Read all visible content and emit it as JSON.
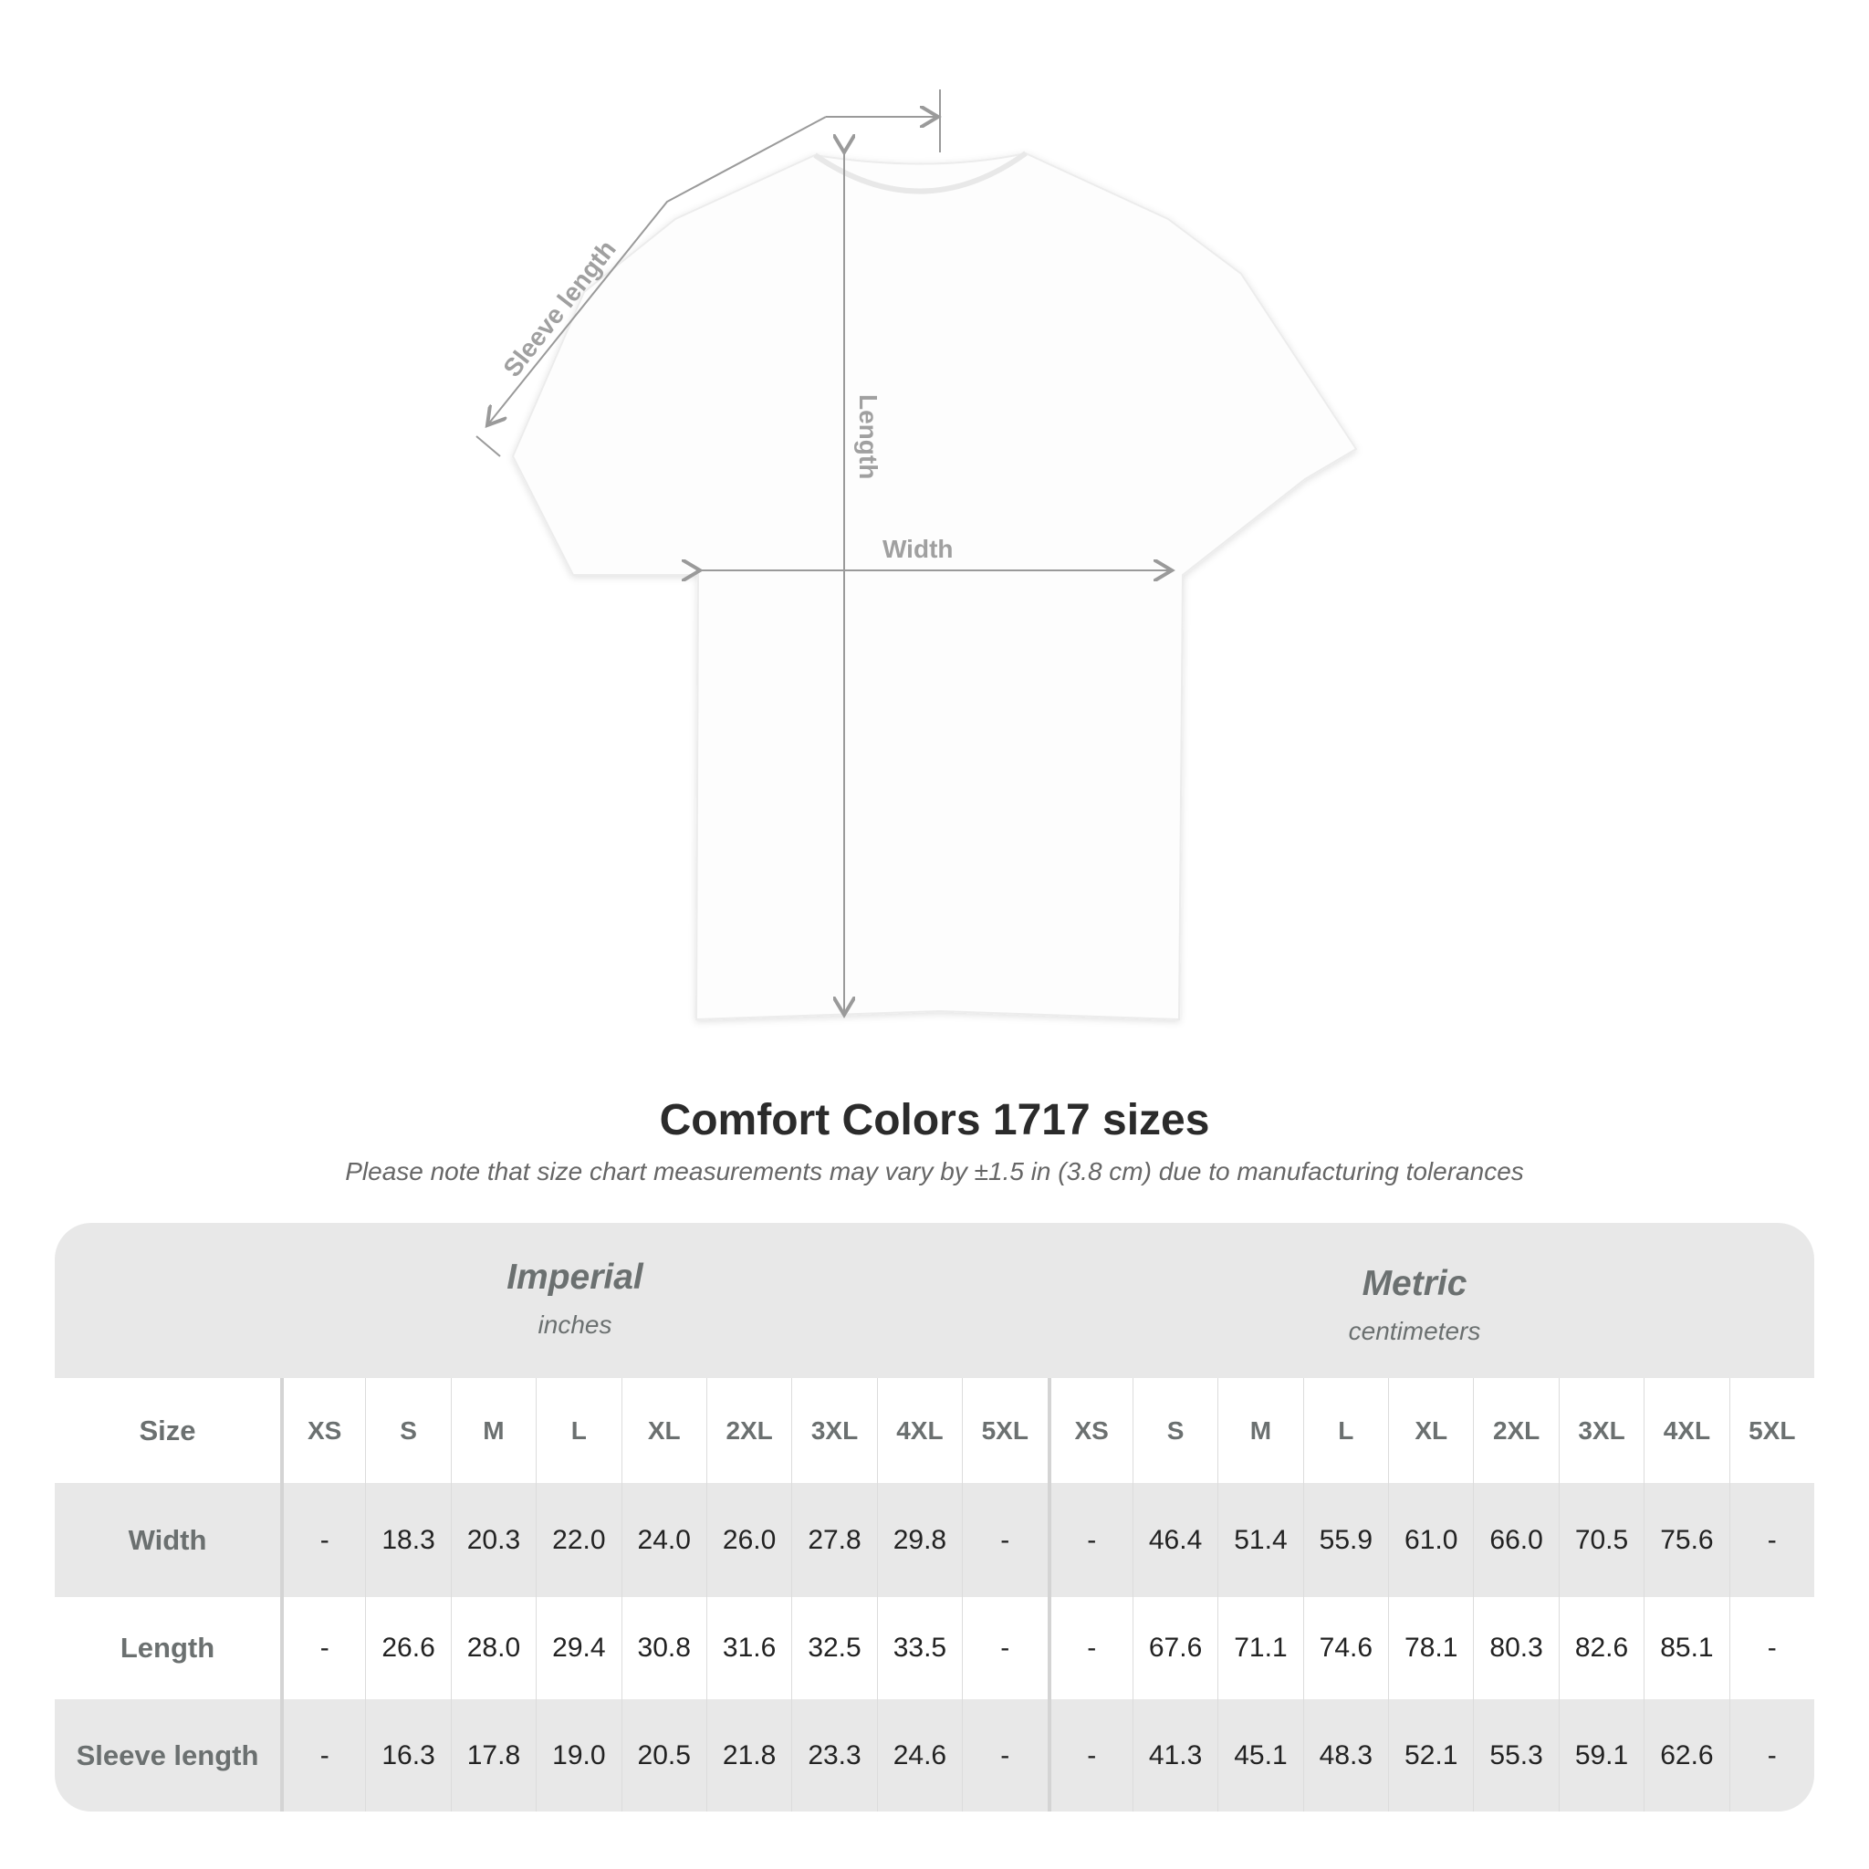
{
  "diagram": {
    "labels": {
      "sleeve": "Sleeve length",
      "length": "Length",
      "width": "Width"
    },
    "line_color": "#9a9a9a"
  },
  "title": "Comfort Colors 1717 sizes",
  "subtitle": "Please note that size chart measurements may vary by ±1.5 in (3.8 cm) due to manufacturing tolerances",
  "table": {
    "imperial": {
      "name": "Imperial",
      "unit": "inches"
    },
    "metric": {
      "name": "Metric",
      "unit": "centimeters"
    },
    "size_label": "Size",
    "sizes": [
      "XS",
      "S",
      "M",
      "L",
      "XL",
      "2XL",
      "3XL",
      "4XL",
      "5XL"
    ],
    "rows": [
      {
        "label": "Width",
        "imperial": [
          "-",
          "18.3",
          "20.3",
          "22.0",
          "24.0",
          "26.0",
          "27.8",
          "29.8",
          "-"
        ],
        "metric": [
          "-",
          "46.4",
          "51.4",
          "55.9",
          "61.0",
          "66.0",
          "70.5",
          "75.6",
          "-"
        ]
      },
      {
        "label": "Length",
        "imperial": [
          "-",
          "26.6",
          "28.0",
          "29.4",
          "30.8",
          "31.6",
          "32.5",
          "33.5",
          "-"
        ],
        "metric": [
          "-",
          "67.6",
          "71.1",
          "74.6",
          "78.1",
          "80.3",
          "82.6",
          "85.1",
          "-"
        ]
      },
      {
        "label": "Sleeve length",
        "imperial": [
          "-",
          "16.3",
          "17.8",
          "19.0",
          "20.5",
          "21.8",
          "23.3",
          "24.6",
          "-"
        ],
        "metric": [
          "-",
          "41.3",
          "45.1",
          "48.3",
          "52.1",
          "55.3",
          "59.1",
          "62.6",
          "-"
        ]
      }
    ]
  }
}
